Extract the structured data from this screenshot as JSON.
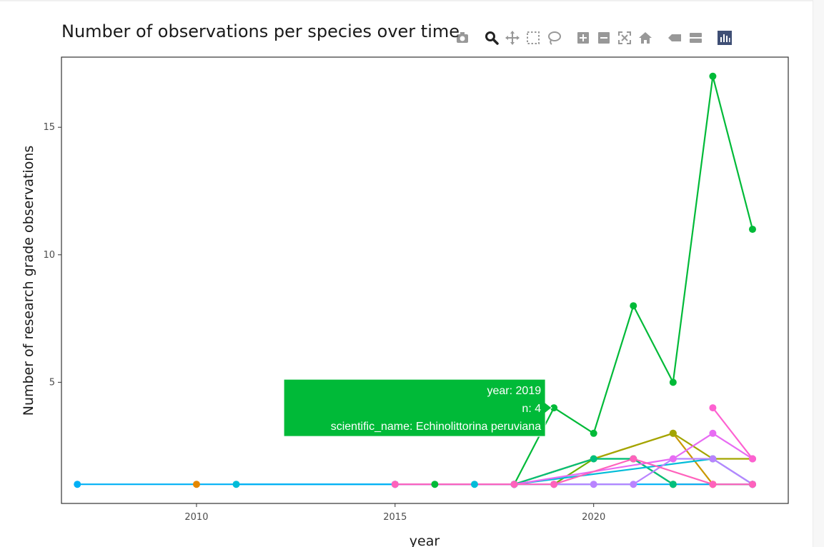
{
  "chart_data": {
    "type": "line",
    "title": "Number of observations per species over time",
    "xlabel": "year",
    "ylabel": "Number of research grade observations",
    "xlim": [
      2006.6,
      2024.9
    ],
    "ylim": [
      0.25,
      17.75
    ],
    "x_ticks": [
      2010,
      2015,
      2020
    ],
    "y_ticks": [
      5,
      10,
      15
    ],
    "grid": false,
    "legend": "none",
    "series": [
      {
        "color": "#00ba38",
        "x": [
          2016,
          2018,
          2019,
          2020,
          2021,
          2022,
          2023,
          2024
        ],
        "y": [
          1,
          1,
          4,
          3,
          8,
          5,
          17,
          11
        ]
      },
      {
        "color": "#f8766d",
        "x": [
          2021,
          2022,
          2023,
          2024
        ],
        "y": [
          2,
          1,
          1,
          1
        ]
      },
      {
        "color": "#e58700",
        "x": [
          2010
        ],
        "y": [
          1
        ]
      },
      {
        "color": "#c99800",
        "x": [
          2018,
          2022,
          2023,
          2024
        ],
        "y": [
          1,
          3,
          1,
          1
        ]
      },
      {
        "color": "#a3a500",
        "x": [
          2018,
          2022,
          2023,
          2024
        ],
        "y": [
          1,
          3,
          2,
          2
        ]
      },
      {
        "color": "#6bb100",
        "x": [
          2019,
          2020,
          2021,
          2022
        ],
        "y": [
          1,
          2,
          2,
          1
        ]
      },
      {
        "color": "#00bf7d",
        "x": [
          2018,
          2020,
          2021,
          2022
        ],
        "y": [
          1,
          2,
          2,
          1
        ]
      },
      {
        "color": "#00bcd8",
        "x": [
          2011,
          2015,
          2017,
          2018,
          2023,
          2024
        ],
        "y": [
          1,
          1,
          1,
          1,
          2,
          1
        ]
      },
      {
        "color": "#00b0f6",
        "x": [
          2007,
          2015,
          2018,
          2024
        ],
        "y": [
          1,
          1,
          1,
          1
        ]
      },
      {
        "color": "#b983ff",
        "x": [
          2019,
          2020,
          2021,
          2022,
          2023,
          2024
        ],
        "y": [
          1,
          1,
          1,
          2,
          2,
          1
        ]
      },
      {
        "color": "#e76bf3",
        "x": [
          2015,
          2018,
          2022,
          2023,
          2024
        ],
        "y": [
          1,
          1,
          2,
          3,
          2
        ]
      },
      {
        "color": "#ff62bc",
        "x": [
          2015,
          2018,
          2019,
          2021,
          2023,
          2024
        ],
        "y": [
          1,
          1,
          1,
          2,
          1,
          1
        ]
      },
      {
        "color": "#fd61d1",
        "x": [
          2023,
          2024
        ],
        "y": [
          4,
          2
        ]
      }
    ],
    "hover": {
      "series_color": "#00ba38",
      "x": 2019,
      "y": 4,
      "lines": [
        "year: 2019",
        "n:  4",
        "scientific_name: Echinolittorina peruviana"
      ]
    }
  },
  "modebar": [
    {
      "icon": "camera-icon"
    },
    {
      "icon": "zoom-icon",
      "active": true
    },
    {
      "icon": "pan-icon"
    },
    {
      "icon": "box-select-icon"
    },
    {
      "icon": "lasso-select-icon"
    },
    {
      "icon": "zoom-in-icon"
    },
    {
      "icon": "zoom-out-icon"
    },
    {
      "icon": "autoscale-icon"
    },
    {
      "icon": "reset-axes-icon"
    },
    {
      "icon": "hover-closest-icon"
    },
    {
      "icon": "hover-compare-icon"
    },
    {
      "icon": "plotly-logo-icon"
    }
  ]
}
